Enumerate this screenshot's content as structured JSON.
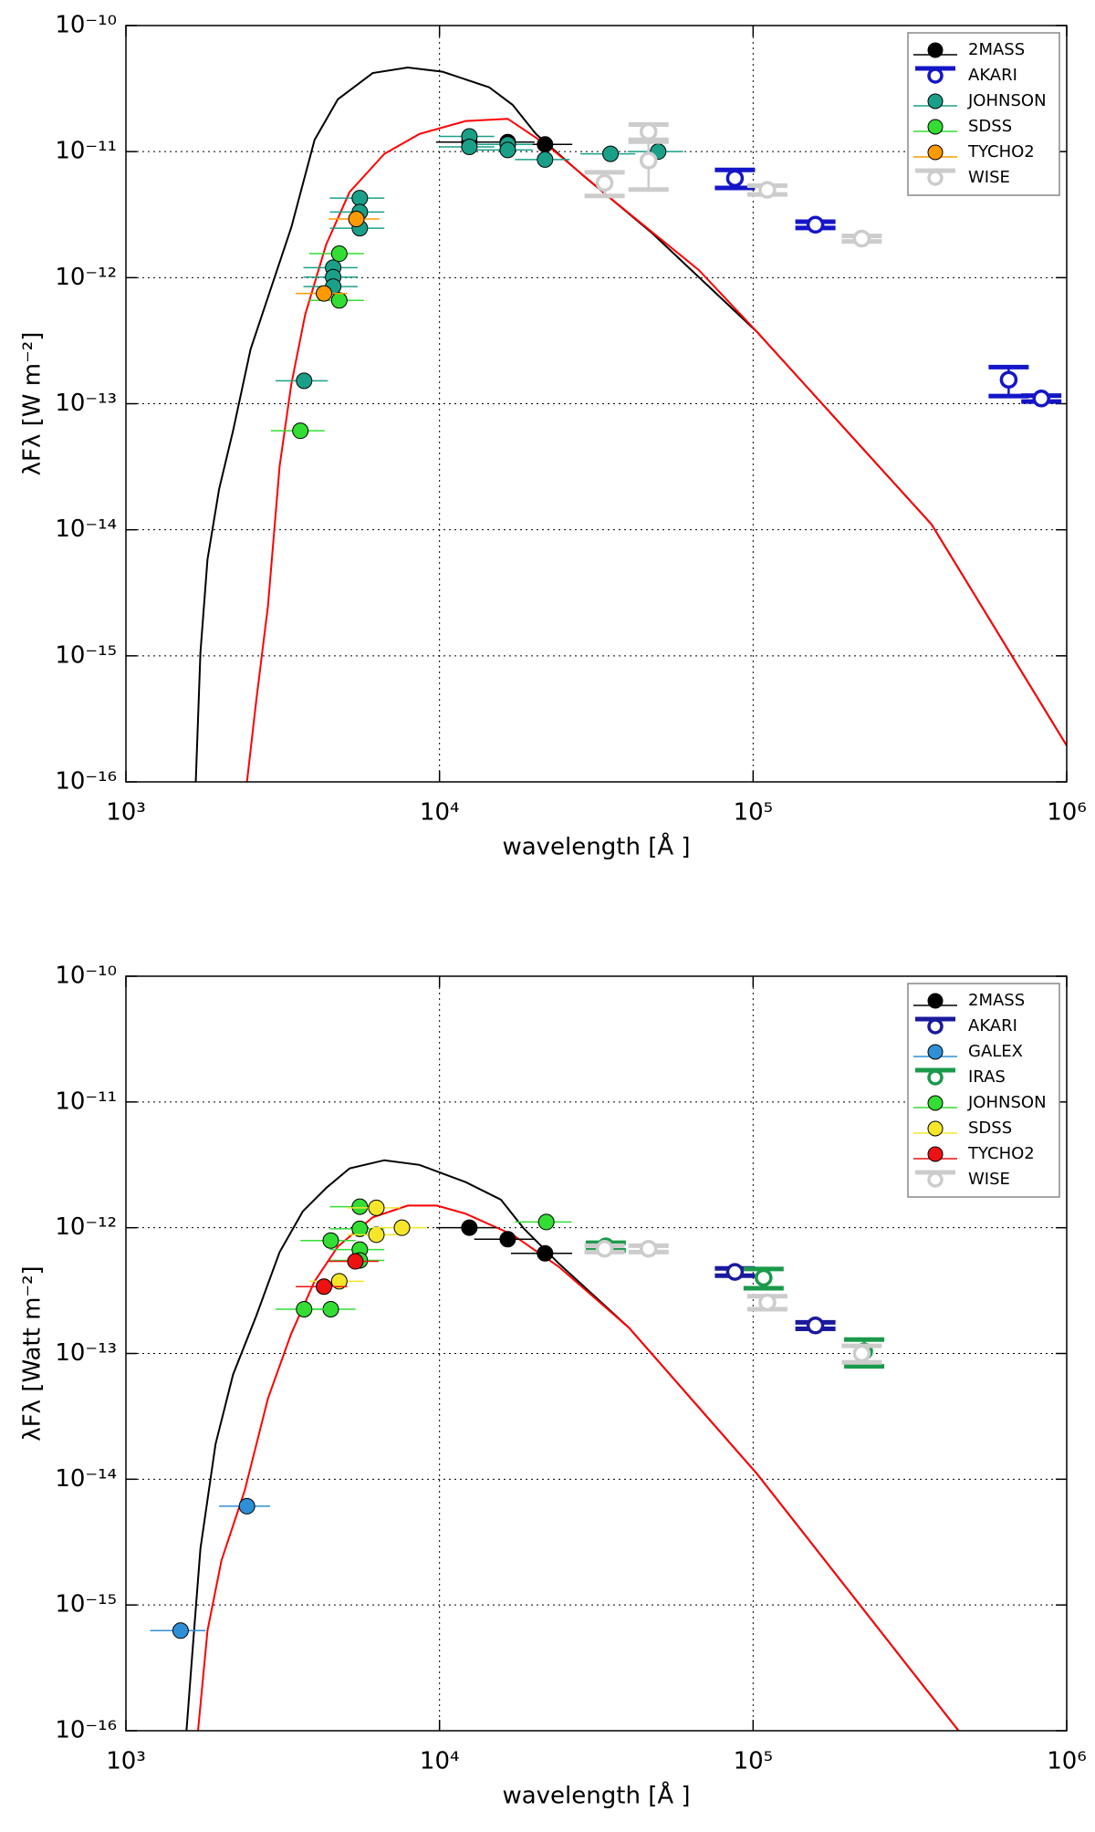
{
  "chart_data": [
    {
      "type": "scatter",
      "xlabel": "wavelength [Å ]",
      "ylabel": "λFλ [W m⁻²]",
      "xscale": "log",
      "yscale": "log",
      "xlim": [
        1000,
        1000000
      ],
      "ylim": [
        1e-16,
        1e-10
      ],
      "xticks": [
        {
          "value": 1000,
          "label": "10³"
        },
        {
          "value": 10000,
          "label": "10⁴"
        },
        {
          "value": 100000,
          "label": "10⁵"
        },
        {
          "value": 1000000,
          "label": "10⁶"
        }
      ],
      "yticks": [
        {
          "value": 1e-16,
          "label": "10⁻¹⁶"
        },
        {
          "value": 1e-15,
          "label": "10⁻¹⁵"
        },
        {
          "value": 1e-14,
          "label": "10⁻¹⁴"
        },
        {
          "value": 1e-13,
          "label": "10⁻¹³"
        },
        {
          "value": 1e-12,
          "label": "10⁻¹²"
        },
        {
          "value": 1e-11,
          "label": "10⁻¹¹"
        },
        {
          "value": 1e-10,
          "label": "10⁻¹⁰"
        }
      ],
      "grid": true,
      "legend": "upper right",
      "models": [
        {
          "color": "#000000",
          "x": [
            1670,
            1728,
            1820,
            1982,
            2196,
            2497,
            2838,
            3367,
            3996,
            4741,
            6124,
            7915,
            10230,
            14390,
            17100,
            20300,
            28500,
            47600,
            103000,
            371000,
            1000000
          ],
          "values": [
            1e-16,
            1.06e-15,
            5.8e-15,
            2.1e-14,
            6.1e-14,
            2.7e-13,
            7e-13,
            2.5e-12,
            1.24e-11,
            2.6e-11,
            4.2e-11,
            4.65e-11,
            4.3e-11,
            3.24e-11,
            2.35e-11,
            1.38e-11,
            6.56e-12,
            2.26e-12,
            3.7e-13,
            1.1e-14,
            1.94e-16
          ]
        },
        {
          "color": "#ff0000",
          "x": [
            2432,
            2606,
            2838,
            3091,
            3367,
            3730,
            4350,
            5164,
            6670,
            8630,
            12140,
            16500,
            22100,
            36900,
            67100,
            103000,
            371000,
            1000000
          ],
          "values": [
            1e-16,
            4.5e-16,
            2.5e-15,
            3.2e-14,
            1.42e-13,
            5.1e-13,
            1.83e-12,
            4.77e-12,
            9.6e-12,
            1.38e-11,
            1.75e-11,
            1.82e-11,
            1.12e-11,
            3.85e-12,
            1.15e-12,
            3.7e-13,
            1.1e-14,
            1.94e-16
          ]
        }
      ],
      "series": [
        {
          "name": "2MASS",
          "color": "#000000",
          "marker": "filled",
          "x": [
            12450,
            16500,
            21700
          ],
          "values": [
            1.19e-11,
            1.19e-11,
            1.14e-11
          ],
          "xerr": [
            2700,
            3600,
            4800
          ]
        },
        {
          "name": "AKARI",
          "color": "#1515c8",
          "marker": "open",
          "x": [
            87500,
            158000,
            653000,
            830000
          ],
          "values": [
            6.15e-12,
            2.63e-12,
            1.55e-13,
            1.1e-13
          ],
          "yerr": [
            1e-12,
            1.5e-13,
            4e-14,
            6e-15
          ]
        },
        {
          "name": "JOHNSON",
          "color": "#1aa088",
          "marker": "filled",
          "x": [
            5570,
            5570,
            5570,
            4580,
            4580,
            4580,
            3700,
            12450,
            12450,
            16500,
            16500,
            21700,
            35100,
            49800
          ],
          "values": [
            4.28e-12,
            3.32e-12,
            2.47e-12,
            1.2e-12,
            1.01e-12,
            8.5e-13,
            1.52e-13,
            1.32e-11,
            1.09e-11,
            1.14e-11,
            1.03e-11,
            8.65e-12,
            9.6e-12,
            1e-11
          ],
          "xerr": [
            1100,
            1100,
            1100,
            900,
            900,
            900,
            700,
            2500,
            2500,
            3300,
            3300,
            4300,
            7000,
            10000
          ]
        },
        {
          "name": "SDSS",
          "color": "#33dd33",
          "marker": "filled",
          "x": [
            4790,
            4790,
            3600
          ],
          "values": [
            1.55e-12,
            6.6e-13,
            6.1e-14
          ],
          "xerr": [
            950,
            950,
            700
          ]
        },
        {
          "name": "TYCHO2",
          "color": "#ff9900",
          "marker": "filled",
          "x": [
            5430,
            4280
          ],
          "values": [
            2.92e-12,
            7.5e-13
          ],
          "xerr": [
            1000,
            800
          ]
        },
        {
          "name": "WISE",
          "color": "#cccccc",
          "marker": "open",
          "x": [
            33600,
            46400,
            46400,
            111000,
            222000
          ],
          "values": [
            5.65e-12,
            1.44e-11,
            8.5e-12,
            4.97e-12,
            2.04e-12
          ],
          "yerr": [
            1.2e-12,
            2e-12,
            3.5e-12,
            4e-13,
            1e-13
          ]
        }
      ]
    },
    {
      "type": "scatter",
      "xlabel": "wavelength [Å ]",
      "ylabel": "λFλ [Watt m⁻²]",
      "xscale": "log",
      "yscale": "log",
      "xlim": [
        1000,
        1000000
      ],
      "ylim": [
        1e-16,
        1e-10
      ],
      "xticks": [
        {
          "value": 1000,
          "label": "10³"
        },
        {
          "value": 10000,
          "label": "10⁴"
        },
        {
          "value": 100000,
          "label": "10⁵"
        },
        {
          "value": 1000000,
          "label": "10⁶"
        }
      ],
      "yticks": [
        {
          "value": 1e-16,
          "label": "10⁻¹⁶"
        },
        {
          "value": 1e-15,
          "label": "10⁻¹⁵"
        },
        {
          "value": 1e-14,
          "label": "10⁻¹⁴"
        },
        {
          "value": 1e-13,
          "label": "10⁻¹³"
        },
        {
          "value": 1e-12,
          "label": "10⁻¹²"
        },
        {
          "value": 1e-11,
          "label": "10⁻¹¹"
        },
        {
          "value": 1e-10,
          "label": "10⁻¹⁰"
        }
      ],
      "grid": true,
      "legend": "upper right",
      "models": [
        {
          "color": "#000000",
          "x": [
            1560,
            1628,
            1728,
            1931,
            2196,
            2606,
            3091,
            3665,
            4350,
            5164,
            6670,
            8630,
            12140,
            15700,
            18600,
            24000,
            40200,
            103000,
            452000
          ],
          "values": [
            1e-16,
            4.1e-16,
            2.8e-15,
            1.9e-14,
            6.8e-14,
            2e-13,
            6.4e-13,
            1.35e-12,
            2.07e-12,
            2.96e-12,
            3.44e-12,
            3.16e-12,
            2.3e-12,
            1.67e-12,
            9.8e-13,
            5.2e-13,
            1.6e-13,
            1.1e-14,
            1e-16
          ]
        },
        {
          "color": "#ff0000",
          "x": [
            1698,
            1820,
            2016,
            2391,
            2838,
            3367,
            3996,
            4741,
            6124,
            7915,
            9800,
            12140,
            17100,
            24000,
            40200,
            103000,
            452000
          ],
          "values": [
            1e-16,
            6.25e-16,
            2.25e-15,
            8.1e-15,
            4.4e-14,
            1.44e-13,
            3.75e-13,
            7.1e-13,
            1.21e-12,
            1.5e-12,
            1.5e-12,
            1.29e-12,
            8.8e-13,
            4.9e-13,
            1.6e-13,
            1.1e-14,
            1e-16
          ]
        }
      ],
      "series": [
        {
          "name": "2MASS",
          "color": "#000000",
          "marker": "filled",
          "x": [
            12450,
            16500,
            21700
          ],
          "values": [
            1e-12,
            8.1e-13,
            6.25e-13
          ],
          "xerr": [
            2700,
            3600,
            4800
          ]
        },
        {
          "name": "AKARI",
          "color": "#1a1a9e",
          "marker": "open",
          "x": [
            87500,
            158000
          ],
          "values": [
            4.45e-13,
            1.67e-13
          ],
          "yerr": [
            3e-14,
            1e-14
          ]
        },
        {
          "name": "GALEX",
          "color": "#2e8fd6",
          "marker": "filled",
          "x": [
            1494,
            2432
          ],
          "values": [
            6.25e-16,
            6.1e-15
          ],
          "xerr": [
            300,
            450
          ]
        },
        {
          "name": "IRAS",
          "color": "#1a9a4a",
          "marker": "open",
          "x": [
            33900,
            108000,
            226000
          ],
          "values": [
            7.1e-13,
            4e-13,
            1.04e-13
          ],
          "yerr": [
            5e-14,
            7e-14,
            2.5e-14
          ]
        },
        {
          "name": "JOHNSON",
          "color": "#33dd33",
          "marker": "filled",
          "x": [
            5570,
            5570,
            5570,
            5570,
            4500,
            4500,
            3700,
            21900
          ],
          "values": [
            1.47e-12,
            9.8e-13,
            6.7e-13,
            5.5e-13,
            7.9e-13,
            2.25e-13,
            2.25e-13,
            1.11e-12
          ],
          "xerr": [
            1100,
            1100,
            1100,
            1100,
            900,
            900,
            700,
            4500
          ]
        },
        {
          "name": "SDSS",
          "color": "#f5e62a",
          "marker": "filled",
          "x": [
            6290,
            6290,
            7590,
            4790
          ],
          "values": [
            1.44e-12,
            8.8e-13,
            1e-12,
            3.75e-13
          ],
          "xerr": [
            1200,
            1200,
            1500,
            950
          ]
        },
        {
          "name": "TYCHO2",
          "color": "#ee1111",
          "marker": "filled",
          "x": [
            5390,
            4280
          ],
          "values": [
            5.4e-13,
            3.4e-13
          ],
          "xerr": [
            1000,
            800
          ]
        },
        {
          "name": "WISE",
          "color": "#cccccc",
          "marker": "open",
          "x": [
            33600,
            46400,
            111000,
            222000
          ],
          "values": [
            6.8e-13,
            6.8e-13,
            2.55e-13,
            1e-13
          ],
          "yerr": [
            4e-14,
            4e-14,
            3e-14,
            1.5e-14
          ]
        }
      ]
    }
  ]
}
